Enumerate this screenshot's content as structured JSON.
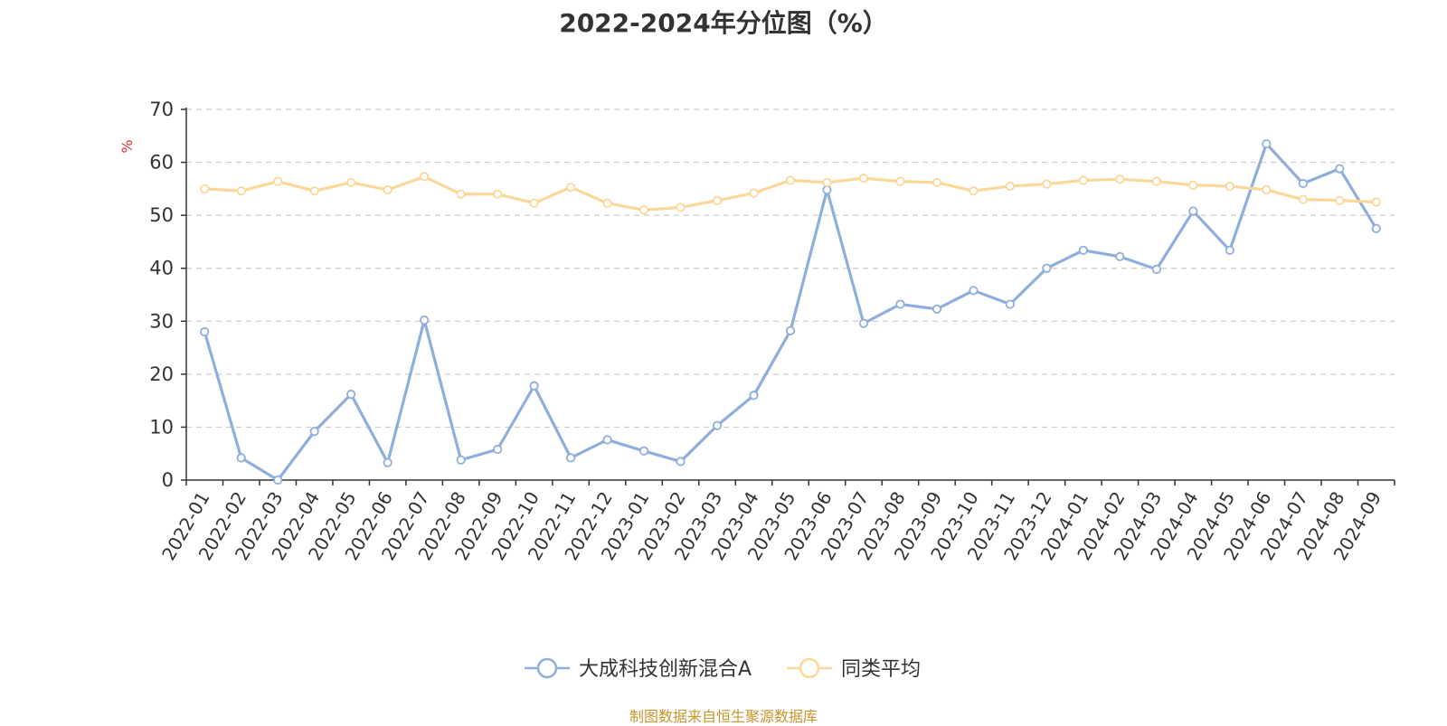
{
  "title": "2022-2024年分位图（%）",
  "source": "制图数据来自恒生聚源数据库",
  "colors": {
    "fund": "#8eaedb",
    "avg": "#fbd899",
    "unit": "#e03030",
    "grid": "#cccccc",
    "axis": "#333333"
  },
  "chart_data": {
    "type": "line",
    "ylabel": "%",
    "ylim": [
      0,
      70
    ],
    "yticks": [
      0,
      10,
      20,
      30,
      40,
      50,
      60,
      70
    ],
    "grid": true,
    "legend_position": "bottom-center",
    "categories": [
      "2022-01",
      "2022-02",
      "2022-03",
      "2022-04",
      "2022-05",
      "2022-06",
      "2022-07",
      "2022-08",
      "2022-09",
      "2022-10",
      "2022-11",
      "2022-12",
      "2023-01",
      "2023-02",
      "2023-03",
      "2023-04",
      "2023-05",
      "2023-06",
      "2023-07",
      "2023-08",
      "2023-09",
      "2023-10",
      "2023-11",
      "2023-12",
      "2024-01",
      "2024-02",
      "2024-03",
      "2024-04",
      "2024-05",
      "2024-06",
      "2024-07",
      "2024-08",
      "2024-09"
    ],
    "series": [
      {
        "name": "大成科技创新混合A",
        "values": [
          28,
          4.2,
          0,
          9.2,
          16.2,
          3.3,
          30.2,
          3.8,
          5.8,
          17.8,
          4.2,
          7.6,
          5.5,
          3.5,
          10.3,
          16,
          28.2,
          54.8,
          29.6,
          33.2,
          32.3,
          35.8,
          33.2,
          40,
          43.4,
          42.2,
          39.8,
          50.8,
          43.4,
          63.5,
          56,
          58.8,
          47.5
        ]
      },
      {
        "name": "同类平均",
        "values": [
          55,
          54.6,
          56.4,
          54.6,
          56.2,
          54.8,
          57.3,
          54,
          54,
          52.3,
          55.3,
          52.3,
          51,
          51.5,
          52.8,
          54.2,
          56.6,
          56.2,
          57,
          56.4,
          56.2,
          54.6,
          55.5,
          55.9,
          56.6,
          56.8,
          56.4,
          55.7,
          55.5,
          54.8,
          53,
          52.8,
          52.5
        ]
      }
    ]
  }
}
